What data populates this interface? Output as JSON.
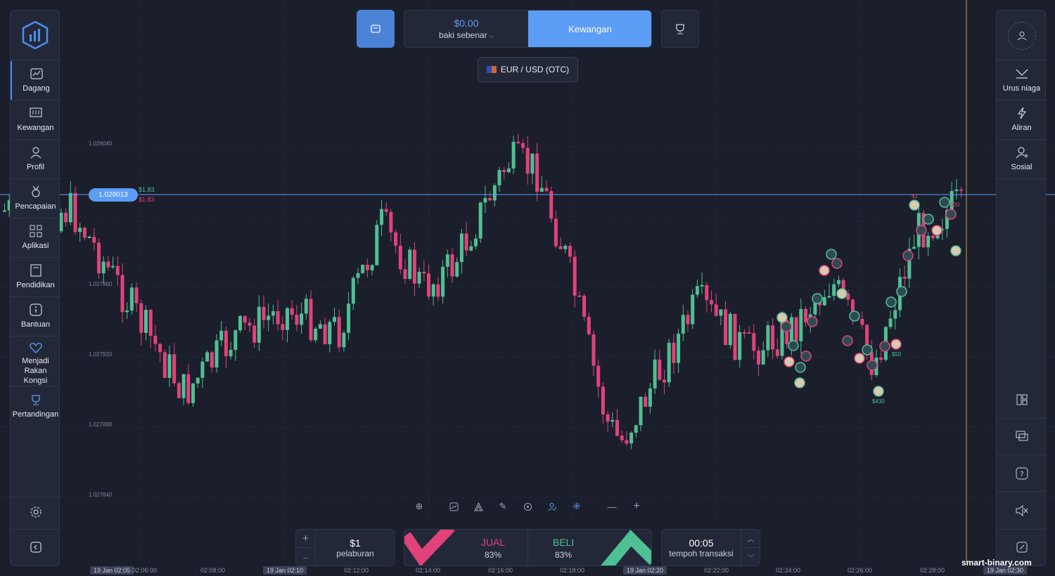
{
  "sidebar_left": {
    "items": [
      {
        "label": "Dagang",
        "icon": "chart-icon"
      },
      {
        "label": "Kewangan",
        "icon": "wallet-icon"
      },
      {
        "label": "Profil",
        "icon": "user-icon"
      },
      {
        "label": "Pencapaian",
        "icon": "medal-icon"
      },
      {
        "label": "Aplikasi",
        "icon": "apps-icon"
      },
      {
        "label": "Pendidikan",
        "icon": "book-icon"
      },
      {
        "label": "Bantuan",
        "icon": "info-icon"
      },
      {
        "label": "Menjadi Rakan Kongsi",
        "icon": "heart-icon"
      },
      {
        "label": "Pertandingan",
        "icon": "trophy-icon"
      }
    ]
  },
  "sidebar_right": {
    "items": [
      {
        "label": "Urus niaga",
        "icon": "trades-icon"
      },
      {
        "label": "Aliran",
        "icon": "lightning-icon"
      },
      {
        "label": "Sosial",
        "icon": "add-user-icon"
      }
    ]
  },
  "header": {
    "balance_amount": "$0.00",
    "balance_label": "baki sebenar",
    "deposit_label": "Kewangan"
  },
  "asset": {
    "name": "EUR / USD (OTC)"
  },
  "price": {
    "current": "1.028013",
    "payout_up": "$1.83",
    "payout_down": "$1.83",
    "y_ticks": [
      "1.028040",
      "1.027960",
      "1.027920",
      "1.027880",
      "1.027840"
    ],
    "x_ticks": [
      "19 Jan 02:05",
      "02:06:00",
      "02:08:00",
      "19 Jan 02:10",
      "02:12:00",
      "02:14:00",
      "02:16:00",
      "02:18:00",
      "19 Jan 02:20",
      "02:22:00",
      "02:24:00",
      "02:26:00",
      "02:28:00",
      "19 Jan 02:30"
    ]
  },
  "trade": {
    "amount": "$1",
    "amount_label": "pelaburan",
    "sell_label": "JUAL",
    "sell_pct": "83%",
    "buy_label": "BELI",
    "buy_pct": "83%",
    "time": "00:05",
    "time_label": "tempoh transaksi"
  },
  "social_labels": [
    "$1",
    "$50",
    "$430",
    "$20"
  ],
  "watermark": "smart-binary.com",
  "colors": {
    "up": "#4fbf94",
    "down": "#e0427a",
    "accent": "#5c9df5",
    "bg": "#1b1f2c"
  }
}
